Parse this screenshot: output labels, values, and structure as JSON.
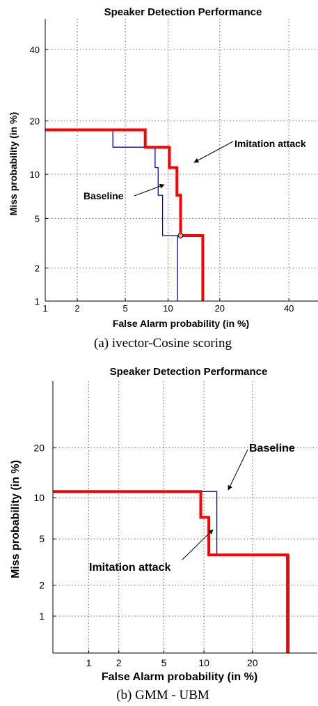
{
  "chart_data": [
    {
      "type": "line",
      "title": "Speaker Detection Performance",
      "xlabel": "False Alarm probability (in %)",
      "ylabel": "Miss probability (in %)",
      "xscale": "normal-deviate",
      "yscale": "normal-deviate",
      "xlim": [
        1,
        50
      ],
      "ylim": [
        1,
        50
      ],
      "x_ticks": [
        "1",
        "2",
        "5",
        "10",
        "20",
        "40"
      ],
      "y_ticks": [
        "1",
        "2",
        "5",
        "10",
        "20",
        "40"
      ],
      "x_tick_values": [
        1,
        2,
        5,
        10,
        20,
        40
      ],
      "y_tick_values": [
        1,
        2,
        5,
        10,
        20,
        40
      ],
      "grid": true,
      "series": [
        {
          "name": "Baseline",
          "color": "#0000cc",
          "x": [
            1,
            4,
            4,
            8.2,
            8.2,
            8.6,
            8.6,
            9.2,
            9.2,
            9.6,
            9.6,
            11.5,
            11.5
          ],
          "y": [
            18,
            18,
            14.5,
            14.5,
            11,
            11,
            7.3,
            7.3,
            3.7,
            3.7,
            3.7,
            3.7,
            1
          ]
        },
        {
          "name": "Imitation attack",
          "color": "#ff0000",
          "x": [
            1,
            7,
            7,
            10.2,
            10.2,
            11.4,
            11.4,
            12,
            12,
            16.2,
            16.2
          ],
          "y": [
            18,
            18,
            14.5,
            14.5,
            11,
            11,
            7.3,
            7.3,
            3.7,
            3.7,
            1
          ]
        }
      ],
      "marker": {
        "x": 12,
        "y": 3.7
      },
      "annotations": [
        {
          "text": "Imitation attack",
          "series": "Imitation attack"
        },
        {
          "text": "Baseline",
          "series": "Baseline"
        }
      ],
      "caption": "(a) ivector-Cosine scoring"
    },
    {
      "type": "line",
      "title": "Speaker Detection Performance",
      "xlabel": "False Alarm probability (in %)",
      "ylabel": "Miss probability (in %)",
      "xscale": "normal-deviate",
      "yscale": "normal-deviate",
      "xlim": [
        0.4,
        40
      ],
      "ylim": [
        0.4,
        40
      ],
      "x_ticks": [
        "1",
        "2",
        "5",
        "10",
        "20"
      ],
      "y_ticks": [
        "1",
        "2",
        "5",
        "10",
        "20"
      ],
      "x_tick_values": [
        1,
        2,
        5,
        10,
        20
      ],
      "y_tick_values": [
        1,
        2,
        5,
        10,
        20
      ],
      "grid": true,
      "series": [
        {
          "name": "Baseline",
          "color": "#0000cc",
          "x": [
            0.4,
            12.2,
            12.2,
            30.5,
            30.5
          ],
          "y": [
            11,
            11,
            3.7,
            3.7,
            0.4
          ]
        },
        {
          "name": "Imitation attack",
          "color": "#ff0000",
          "x": [
            0.4,
            9.5,
            9.5,
            10.8,
            10.8,
            30,
            30
          ],
          "y": [
            11,
            11,
            7.3,
            7.3,
            3.7,
            3.7,
            0.4
          ]
        }
      ],
      "annotations": [
        {
          "text": "Baseline",
          "series": "Baseline"
        },
        {
          "text": "Imitation attack",
          "series": "Imitation attack"
        }
      ],
      "caption": "(b) GMM - UBM"
    }
  ]
}
